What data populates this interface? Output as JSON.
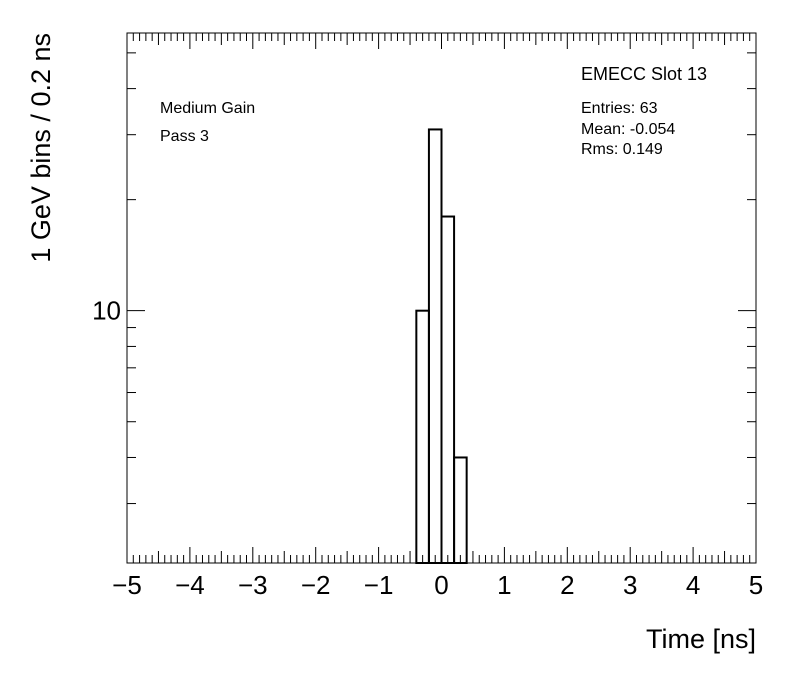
{
  "chart_data": {
    "type": "histogram",
    "title": "EMECC Slot 13",
    "annotations": [
      "Medium Gain",
      "Pass 3"
    ],
    "stats": [
      "Entries: 63",
      "Mean: -0.054",
      "Rms: 0.149"
    ],
    "x_label": "Time [ns]",
    "y_label": "1 GeV bins / 0.2 ns",
    "bins": [
      -0.4,
      -0.2,
      0,
      0.2,
      0.4
    ],
    "values": [
      10,
      31,
      18,
      4
    ],
    "color": "#000000",
    "xlim": [
      -5,
      5
    ],
    "xticks": [
      {
        "value": -5,
        "label": "−5"
      },
      {
        "value": -4,
        "label": "−4"
      },
      {
        "value": -3,
        "label": "−3"
      },
      {
        "value": -2,
        "label": "−2"
      },
      {
        "value": -1,
        "label": "−1"
      },
      0,
      1,
      2,
      3,
      4,
      5
    ],
    "ylim": [
      2.07,
      56.6
    ],
    "yticks": [
      10
    ],
    "log_y": true
  }
}
